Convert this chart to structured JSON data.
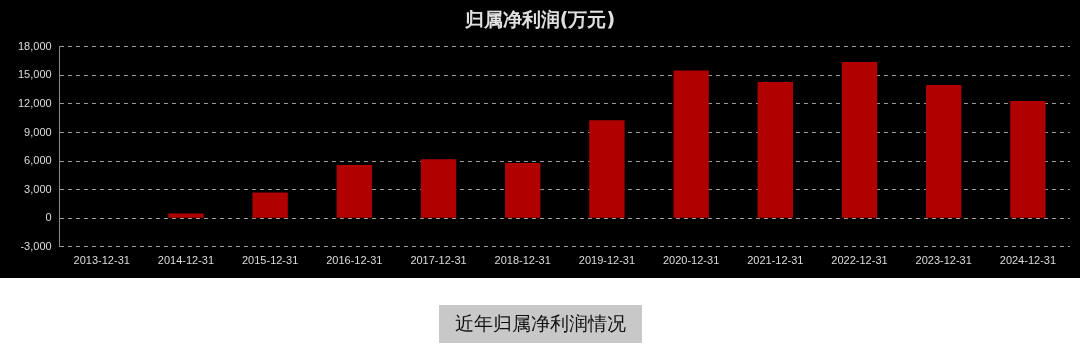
{
  "chart_data": {
    "type": "bar",
    "title": "归属净利润(万元)",
    "categories": [
      "2013-12-31",
      "2014-12-31",
      "2015-12-31",
      "2016-12-31",
      "2017-12-31",
      "2018-12-31",
      "2019-12-31",
      "2020-12-31",
      "2021-12-31",
      "2022-12-31",
      "2023-12-31",
      "2024-12-31"
    ],
    "values": [
      0,
      500,
      2700,
      5600,
      6200,
      5800,
      10300,
      15500,
      14300,
      16400,
      14000,
      12300
    ],
    "color": "#b00000",
    "ylim": [
      -3000,
      18000
    ],
    "yticks": [
      {
        "value": -3000,
        "label": "-3,000"
      },
      0,
      {
        "value": 3000,
        "label": "3,000"
      },
      {
        "value": 6000,
        "label": "6,000"
      },
      {
        "value": 9000,
        "label": "9,000"
      },
      {
        "value": 12000,
        "label": "12,000"
      },
      {
        "value": 15000,
        "label": "15,000"
      },
      {
        "value": 18000,
        "label": "18,000"
      }
    ],
    "grid": "y",
    "annotations": [
      "近年归属净利润情况"
    ]
  }
}
